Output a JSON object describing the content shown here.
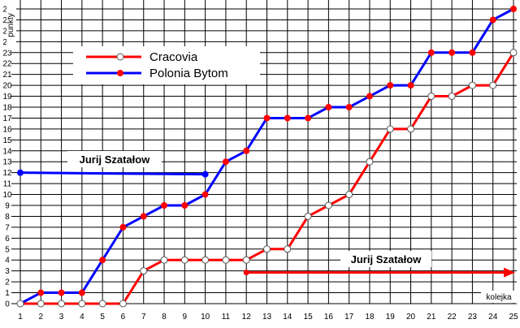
{
  "chart_data": {
    "type": "line",
    "x": [
      1,
      2,
      3,
      4,
      5,
      6,
      7,
      8,
      9,
      10,
      11,
      12,
      13,
      14,
      15,
      16,
      17,
      18,
      19,
      20,
      21,
      22,
      23,
      24,
      25
    ],
    "series": [
      {
        "name": "Cracovia",
        "color": "#ff0000",
        "marker": "hollow-circle",
        "values": [
          0,
          0,
          0,
          0,
          0,
          0,
          3,
          4,
          4,
          4,
          4,
          4,
          5,
          5,
          8,
          9,
          10,
          13,
          16,
          16,
          19,
          19,
          20,
          20,
          23
        ]
      },
      {
        "name": "Polonia Bytom",
        "color": "#0000ff",
        "marker": "red-dot",
        "values": [
          0,
          1,
          1,
          1,
          4,
          7,
          8,
          9,
          9,
          10,
          13,
          14,
          17,
          17,
          17,
          18,
          18,
          19,
          20,
          20,
          23,
          23,
          23,
          26,
          27
        ]
      }
    ],
    "xlabel": "kolejka",
    "ylabel": "punkty",
    "xlim": [
      1,
      25
    ],
    "ylim": [
      0,
      27
    ],
    "grid": true,
    "legend_position": "top-left",
    "annotations": [
      {
        "text": "Jurij Szatałow",
        "series": "Polonia Bytom",
        "from_x": 1,
        "to_x": 10,
        "y": 12,
        "color": "#0000ff"
      },
      {
        "text": "Jurij Szatałow",
        "series": "Cracovia",
        "from_x": 12,
        "to_x": 25,
        "y": 3,
        "color": "#ff0000",
        "arrow": true
      }
    ]
  }
}
